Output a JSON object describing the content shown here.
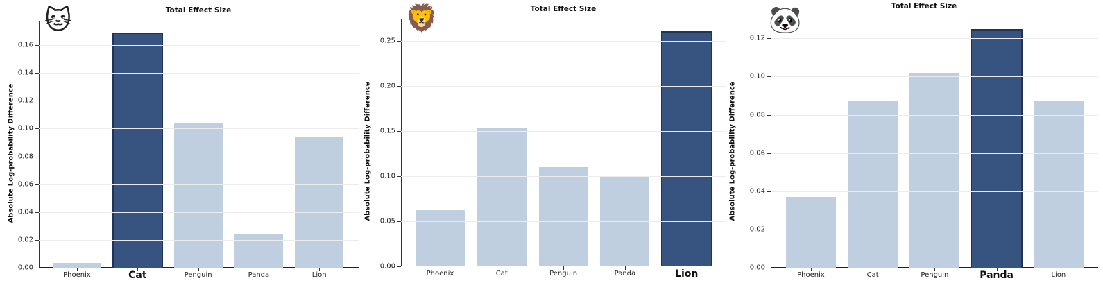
{
  "chart_data": [
    {
      "type": "bar",
      "title": "Total Effect Size",
      "icon": "🐱",
      "icon_name": "cat-face-icon",
      "highlight": "Cat",
      "xlabel": "",
      "ylabel": "Absolute Log-probability Difference",
      "categories": [
        "Phoenix",
        "Cat",
        "Penguin",
        "Panda",
        "Lion"
      ],
      "values": [
        0.0035,
        0.169,
        0.104,
        0.024,
        0.094
      ],
      "yticks": [
        "0.00",
        "0.02",
        "0.04",
        "0.06",
        "0.08",
        "0.10",
        "0.12",
        "0.14",
        "0.16"
      ],
      "ylim": [
        0,
        0.177
      ],
      "grid": true,
      "legend": null
    },
    {
      "type": "bar",
      "title": "Total Effect Size",
      "icon": "🦁",
      "icon_name": "lion-face-icon",
      "highlight": "Lion",
      "xlabel": "",
      "ylabel": "Absolute Log-probability Difference",
      "categories": [
        "Phoenix",
        "Cat",
        "Penguin",
        "Panda",
        "Lion"
      ],
      "values": [
        0.062,
        0.153,
        0.11,
        0.1,
        0.261
      ],
      "yticks": [
        "0.00",
        "0.05",
        "0.10",
        "0.15",
        "0.20",
        "0.25"
      ],
      "ylim": [
        0,
        0.274
      ],
      "grid": true,
      "legend": null
    },
    {
      "type": "bar",
      "title": "Total Effect Size",
      "icon": "🐼",
      "icon_name": "panda-face-icon",
      "highlight": "Panda",
      "xlabel": "",
      "ylabel": "Absolute Log-probability Difference",
      "categories": [
        "Phoenix",
        "Cat",
        "Penguin",
        "Panda",
        "Lion"
      ],
      "values": [
        0.037,
        0.087,
        0.102,
        0.125,
        0.087
      ],
      "yticks": [
        "0.00",
        "0.02",
        "0.04",
        "0.06",
        "0.08",
        "0.10",
        "0.12"
      ],
      "ylim": [
        0,
        0.131
      ],
      "grid": true,
      "legend": null
    }
  ],
  "colors": {
    "bar": "#bfcfdf",
    "highlight_bar": "#375380",
    "highlight_edge": "#1f3557"
  }
}
